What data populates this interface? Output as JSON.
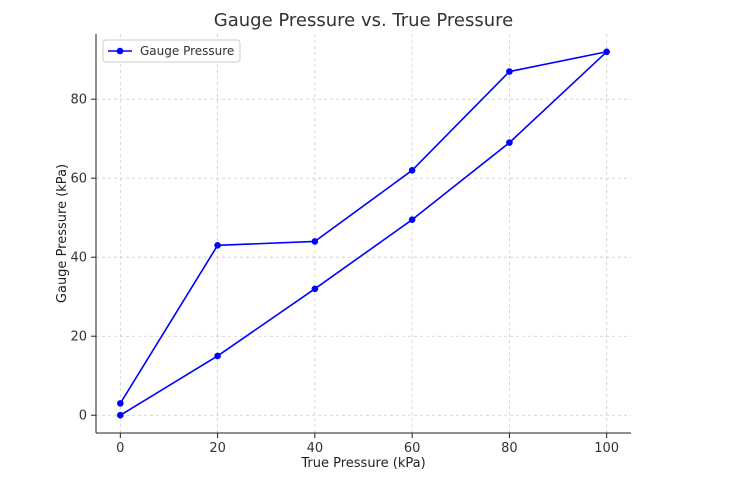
{
  "chart_data": {
    "type": "line",
    "title": "Gauge Pressure vs. True Pressure",
    "xlabel": "True Pressure (kPa)",
    "ylabel": "Gauge Pressure (kPa)",
    "xlim": [
      -5,
      105
    ],
    "ylim": [
      -4.5,
      96.5
    ],
    "xticks": [
      0,
      20,
      40,
      60,
      80,
      100
    ],
    "yticks": [
      0,
      20,
      40,
      60,
      80
    ],
    "grid": true,
    "legend_position": "top-left",
    "series": [
      {
        "name": "Gauge Pressure",
        "color": "#0000ff",
        "marker": "circle",
        "x": [
          0,
          20,
          40,
          60,
          80,
          100,
          80,
          60,
          40,
          20,
          0
        ],
        "y": [
          0,
          15,
          32,
          49.5,
          69,
          92,
          87,
          62,
          44,
          43,
          3
        ]
      }
    ]
  }
}
